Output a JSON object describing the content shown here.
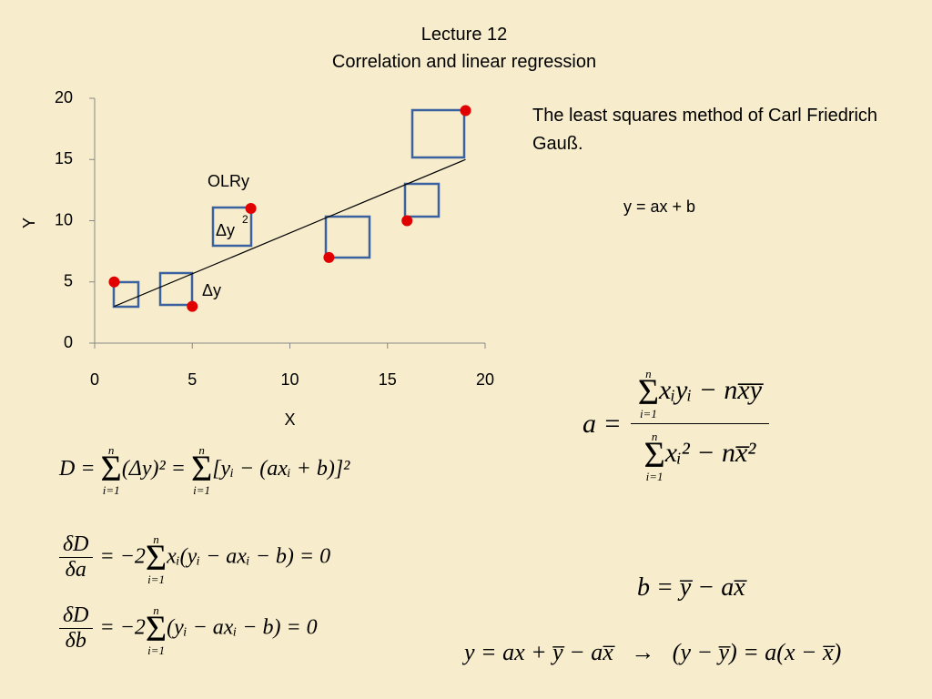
{
  "header": {
    "title": "Lecture 12",
    "subtitle": "Correlation and linear regression"
  },
  "chart_data": {
    "type": "scatter",
    "xlabel": "X",
    "ylabel": "Y",
    "x": [
      1,
      5,
      8,
      12,
      16,
      19
    ],
    "values": [
      5,
      3,
      11,
      7,
      10,
      19
    ],
    "color": "#e00000",
    "fit_line": {
      "x": [
        1,
        19
      ],
      "values": [
        3,
        15
      ],
      "color": "#000000"
    },
    "xlim": [
      0,
      20
    ],
    "ylim": [
      0,
      20
    ],
    "xticks": [
      0,
      5,
      10,
      15,
      20
    ],
    "yticks": [
      0,
      5,
      10,
      15,
      20
    ],
    "grid": false,
    "annotations": [
      "OLRy",
      "Δy",
      "2",
      "Δy"
    ]
  },
  "notes": {
    "method": "The least squares method of Carl Friedrich Gauß.",
    "model": "y = ax + b"
  },
  "formulas": {
    "deviation": {
      "text": "D = Σ(Δy)² = Σ[yᵢ − (axᵢ + b)]²",
      "limits": [
        "n",
        "i=1"
      ]
    },
    "partial_a": {
      "num": "δD",
      "den": "δa",
      "rest": "= −2Σxᵢ(yᵢ − axᵢ − b) = 0",
      "limits": [
        "n",
        "i=1"
      ]
    },
    "partial_b": {
      "num": "δD",
      "den": "δb",
      "rest": "= −2Σ(yᵢ − axᵢ − b) = 0",
      "limits": [
        "n",
        "i=1"
      ]
    },
    "slope": {
      "lhs": "a =",
      "num": "Σxᵢyᵢ − nx̅y̅",
      "den": "Σxᵢ² − nx̅²",
      "limits": [
        "n",
        "i=1"
      ]
    },
    "intercept": {
      "text": "b = y̅ − ax̅"
    },
    "result": {
      "text": "y = ax + y̅ − ax̅   →   (y − y̅) = a(x − x̅)"
    }
  }
}
